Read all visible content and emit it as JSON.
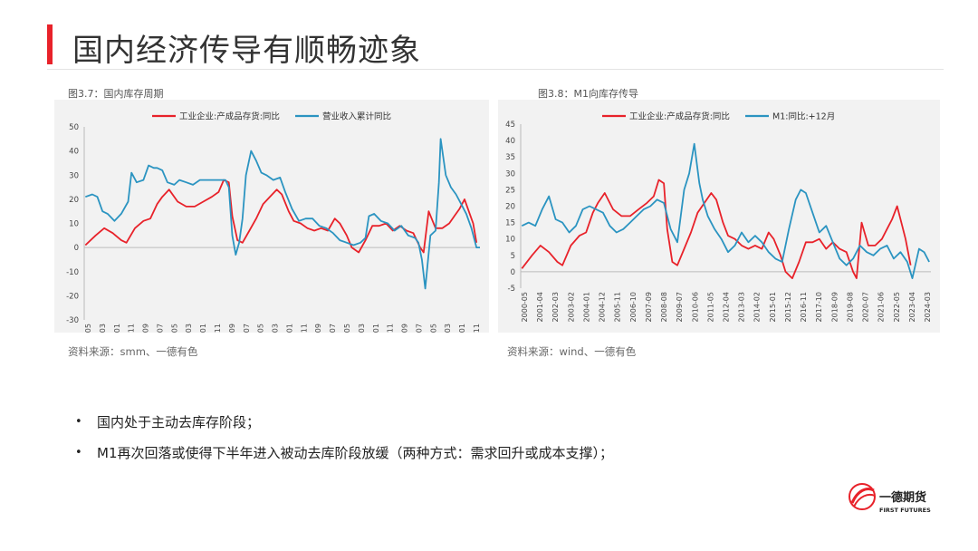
{
  "header": {
    "title": "国内经济传导有顺畅迹象"
  },
  "chart_data": [
    {
      "type": "line",
      "caption": "图3.7：国内库存周期",
      "source": "资料来源：smm、一德有色",
      "ylim": [
        -30,
        50
      ],
      "yticks": [
        "50",
        "40",
        "30",
        "20",
        "10",
        "0",
        "-10",
        "-20",
        "-30"
      ],
      "xticks": [
        "2000-05",
        "2001-03",
        "2002-01",
        "2002-11",
        "2003-09",
        "2004-07",
        "2005-05",
        "2006-03",
        "2007-01",
        "2007-11",
        "2008-09",
        "2009-07",
        "2010-05",
        "2011-03",
        "2012-01",
        "2012-11",
        "2013-09",
        "2014-07",
        "2015-05",
        "2016-03",
        "2017-01",
        "2017-11",
        "2018-09",
        "2019-07",
        "2020-05",
        "2021-03",
        "2022-01",
        "2022-11"
      ],
      "xlim": [
        2000.33,
        2023.5
      ],
      "legend_position": "top",
      "series": [
        {
          "name": "工业企业:产成品存货:同比",
          "color": "#e8222a",
          "x": [
            2000.4,
            2001.0,
            2001.5,
            2002.0,
            2002.5,
            2002.8,
            2003.3,
            2003.8,
            2004.2,
            2004.6,
            2004.9,
            2005.3,
            2005.8,
            2006.3,
            2006.8,
            2007.3,
            2007.8,
            2008.2,
            2008.5,
            2008.8,
            2009.0,
            2009.3,
            2009.6,
            2010.0,
            2010.4,
            2010.8,
            2011.2,
            2011.6,
            2011.9,
            2012.3,
            2012.6,
            2013.0,
            2013.4,
            2013.8,
            2014.2,
            2014.6,
            2015.0,
            2015.3,
            2015.7,
            2016.0,
            2016.4,
            2016.8,
            2017.2,
            2017.6,
            2018.0,
            2018.4,
            2018.8,
            2019.2,
            2019.6,
            2020.0,
            2020.2,
            2020.5,
            2020.9,
            2021.3,
            2021.7,
            2022.0,
            2022.3,
            2022.6,
            2022.9,
            2023.1,
            2023.3
          ],
          "y": [
            1,
            5,
            8,
            6,
            3,
            2,
            8,
            11,
            12,
            18,
            21,
            24,
            19,
            17,
            17,
            19,
            21,
            23,
            28,
            27,
            13,
            3,
            2,
            7,
            12,
            18,
            21,
            24,
            22,
            15,
            11,
            10,
            8,
            7,
            8,
            7,
            12,
            10,
            5,
            0,
            -2,
            3,
            9,
            9,
            10,
            7,
            9,
            7,
            6,
            0,
            -2,
            15,
            8,
            8,
            10,
            13,
            16,
            20,
            14,
            10,
            2
          ]
        },
        {
          "name": "营业收入累计同比",
          "color": "#2b94c1",
          "x": [
            2000.4,
            2000.8,
            2001.1,
            2001.4,
            2001.7,
            2002.1,
            2002.5,
            2002.9,
            2003.1,
            2003.4,
            2003.8,
            2004.1,
            2004.4,
            2004.6,
            2004.9,
            2005.2,
            2005.6,
            2005.9,
            2006.3,
            2006.7,
            2007.1,
            2007.5,
            2007.9,
            2008.3,
            2008.6,
            2008.8,
            2009.0,
            2009.2,
            2009.4,
            2009.6,
            2009.8,
            2010.1,
            2010.4,
            2010.7,
            2011.0,
            2011.4,
            2011.8,
            2012.1,
            2012.5,
            2012.9,
            2013.3,
            2013.7,
            2014.1,
            2014.5,
            2014.9,
            2015.3,
            2015.7,
            2016.1,
            2016.5,
            2016.8,
            2017.0,
            2017.3,
            2017.7,
            2018.1,
            2018.5,
            2018.9,
            2019.3,
            2019.7,
            2019.9,
            2020.1,
            2020.3,
            2020.6,
            2020.9,
            2021.1,
            2021.2,
            2021.5,
            2021.8,
            2022.1,
            2022.4,
            2022.7,
            2023.0,
            2023.3,
            2023.5
          ],
          "y": [
            21,
            22,
            21,
            15,
            14,
            11,
            14,
            19,
            31,
            27,
            28,
            34,
            33,
            33,
            32,
            27,
            26,
            28,
            27,
            26,
            28,
            28,
            28,
            28,
            28,
            25,
            5,
            -3,
            2,
            12,
            30,
            40,
            36,
            31,
            30,
            28,
            29,
            23,
            16,
            11,
            12,
            12,
            9,
            8,
            6,
            3,
            2,
            1,
            2,
            4,
            13,
            14,
            11,
            10,
            7,
            9,
            5,
            4,
            2,
            -5,
            -17,
            5,
            7,
            27,
            45,
            30,
            25,
            22,
            18,
            14,
            8,
            0,
            0
          ]
        }
      ]
    },
    {
      "type": "line",
      "caption": "图3.8：M1向库存传导",
      "source": "资料来源：wind、一德有色",
      "ylim": [
        -5,
        45
      ],
      "yticks": [
        "45",
        "40",
        "35",
        "30",
        "25",
        "20",
        "15",
        "10",
        "5",
        "0",
        "-5"
      ],
      "xticks": [
        "2000-05",
        "2001-04",
        "2002-03",
        "2003-02",
        "2004-01",
        "2004-12",
        "2005-11",
        "2006-10",
        "2007-09",
        "2008-08",
        "2009-07",
        "2010-06",
        "2011-05",
        "2012-04",
        "2013-03",
        "2014-02",
        "2015-01",
        "2015-12",
        "2016-11",
        "2017-10",
        "2018-09",
        "2019-08",
        "2020-07",
        "2021-06",
        "2022-05",
        "2023-04",
        "2024-03"
      ],
      "xlim": [
        2000.33,
        2024.6
      ],
      "legend_position": "top",
      "series": [
        {
          "name": "工业企业:产成品存货:同比",
          "color": "#e8222a",
          "x": [
            2000.4,
            2001.0,
            2001.5,
            2002.0,
            2002.5,
            2002.8,
            2003.3,
            2003.8,
            2004.2,
            2004.6,
            2004.9,
            2005.3,
            2005.8,
            2006.3,
            2006.8,
            2007.3,
            2007.8,
            2008.2,
            2008.5,
            2008.8,
            2009.0,
            2009.3,
            2009.6,
            2010.0,
            2010.4,
            2010.8,
            2011.2,
            2011.6,
            2011.9,
            2012.3,
            2012.6,
            2013.0,
            2013.4,
            2013.8,
            2014.2,
            2014.6,
            2015.0,
            2015.3,
            2015.7,
            2016.0,
            2016.4,
            2016.8,
            2017.2,
            2017.6,
            2018.0,
            2018.4,
            2018.8,
            2019.2,
            2019.6,
            2020.0,
            2020.2,
            2020.5,
            2020.9,
            2021.3,
            2021.7,
            2022.0,
            2022.3,
            2022.6,
            2022.9,
            2023.1,
            2023.4
          ],
          "y": [
            1,
            5,
            8,
            6,
            3,
            2,
            8,
            11,
            12,
            18,
            21,
            24,
            19,
            17,
            17,
            19,
            21,
            23,
            28,
            27,
            13,
            3,
            2,
            7,
            12,
            18,
            21,
            24,
            22,
            15,
            11,
            10,
            8,
            7,
            8,
            7,
            12,
            10,
            5,
            0,
            -2,
            3,
            9,
            9,
            10,
            7,
            9,
            7,
            6,
            0,
            -2,
            15,
            8,
            8,
            10,
            13,
            16,
            20,
            14,
            10,
            2
          ]
        },
        {
          "name": "M1:同比:+12月",
          "color": "#2b94c1",
          "x": [
            2000.4,
            2000.8,
            2001.2,
            2001.6,
            2002.0,
            2002.4,
            2002.8,
            2003.2,
            2003.6,
            2004.0,
            2004.4,
            2004.8,
            2005.2,
            2005.6,
            2006.0,
            2006.4,
            2006.8,
            2007.2,
            2007.6,
            2008.0,
            2008.4,
            2008.8,
            2009.2,
            2009.6,
            2010.0,
            2010.3,
            2010.6,
            2010.9,
            2011.1,
            2011.4,
            2011.8,
            2012.2,
            2012.6,
            2013.0,
            2013.4,
            2013.8,
            2014.2,
            2014.6,
            2015.0,
            2015.4,
            2015.8,
            2016.2,
            2016.6,
            2016.9,
            2017.2,
            2017.6,
            2018.0,
            2018.4,
            2018.8,
            2019.2,
            2019.6,
            2020.0,
            2020.4,
            2020.8,
            2021.2,
            2021.6,
            2022.0,
            2022.4,
            2022.8,
            2023.2,
            2023.5,
            2023.9,
            2024.2,
            2024.5
          ],
          "y": [
            14,
            15,
            14,
            19,
            23,
            16,
            15,
            12,
            14,
            19,
            20,
            19,
            18,
            14,
            12,
            13,
            15,
            17,
            19,
            20,
            22,
            21,
            13,
            9,
            25,
            30,
            39,
            27,
            22,
            17,
            13,
            10,
            6,
            8,
            12,
            9,
            11,
            9,
            6,
            4,
            3,
            13,
            22,
            25,
            24,
            18,
            12,
            14,
            9,
            4,
            2,
            4,
            8,
            6,
            5,
            7,
            8,
            4,
            6,
            3,
            -2,
            7,
            6,
            3
          ]
        }
      ]
    }
  ],
  "bullets": [
    "国内处于主动去库存阶段；",
    "M1再次回落或使得下半年进入被动去库阶段放缓（两种方式：需求回升或成本支撑）；"
  ],
  "logo": {
    "cn": "一德期货",
    "en": "FIRST FUTURES",
    "red": "#e8222a"
  }
}
